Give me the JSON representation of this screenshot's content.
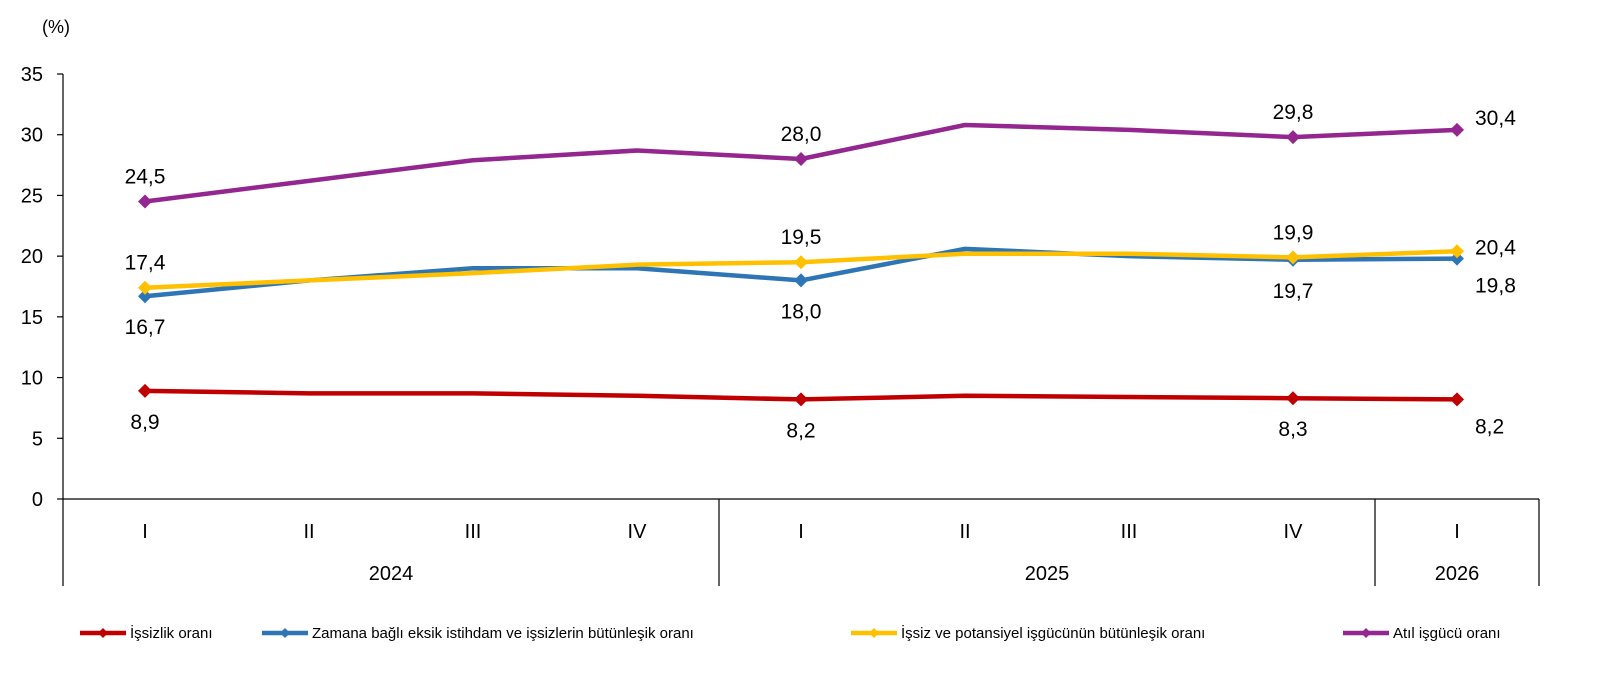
{
  "chart_data": {
    "type": "line",
    "y_unit": "(%)",
    "ylim": [
      0,
      35
    ],
    "y_ticks": [
      0,
      5,
      10,
      15,
      20,
      25,
      30,
      35
    ],
    "categories": [
      "I",
      "II",
      "III",
      "IV",
      "I",
      "II",
      "III",
      "IV",
      "I"
    ],
    "year_groups": [
      {
        "label": "2024",
        "start": 0,
        "end": 3
      },
      {
        "label": "2025",
        "start": 4,
        "end": 7
      },
      {
        "label": "2026",
        "start": 8,
        "end": 8
      }
    ],
    "series": [
      {
        "name": "İşsizlik oranı",
        "color": "#C00000",
        "values": [
          8.9,
          8.7,
          8.7,
          8.5,
          8.2,
          8.5,
          8.4,
          8.3,
          8.2
        ],
        "labels": [
          {
            "index": 0,
            "text": "8,9",
            "pos": "below"
          },
          {
            "index": 4,
            "text": "8,2",
            "pos": "below"
          },
          {
            "index": 7,
            "text": "8,3",
            "pos": "below"
          },
          {
            "index": 8,
            "text": "8,2",
            "pos": "below-right"
          }
        ]
      },
      {
        "name": "Zamana bağlı eksik istihdam ve işsizlerin bütünleşik oranı",
        "color": "#2E75B6",
        "values": [
          16.7,
          18.0,
          19.0,
          19.0,
          18.0,
          20.6,
          20.0,
          19.7,
          19.8
        ],
        "labels": [
          {
            "index": 0,
            "text": "16,7",
            "pos": "below"
          },
          {
            "index": 4,
            "text": "18,0",
            "pos": "below"
          },
          {
            "index": 7,
            "text": "19,7",
            "pos": "below"
          },
          {
            "index": 8,
            "text": "19,8",
            "pos": "below-right"
          }
        ]
      },
      {
        "name": "İşsiz ve potansiyel işgücünün bütünleşik oranı",
        "color": "#FFC000",
        "values": [
          17.4,
          18.0,
          18.6,
          19.3,
          19.5,
          20.2,
          20.2,
          19.9,
          20.4
        ],
        "labels": [
          {
            "index": 0,
            "text": "17,4",
            "pos": "above"
          },
          {
            "index": 4,
            "text": "19,5",
            "pos": "above"
          },
          {
            "index": 7,
            "text": "19,9",
            "pos": "above"
          },
          {
            "index": 8,
            "text": "20,4",
            "pos": "right"
          }
        ]
      },
      {
        "name": "Atıl işgücü oranı",
        "color": "#93278F",
        "values": [
          24.5,
          26.2,
          27.9,
          28.7,
          28.0,
          30.8,
          30.4,
          29.8,
          30.4
        ],
        "labels": [
          {
            "index": 0,
            "text": "24,5",
            "pos": "above"
          },
          {
            "index": 4,
            "text": "28,0",
            "pos": "above"
          },
          {
            "index": 7,
            "text": "29,8",
            "pos": "above"
          },
          {
            "index": 8,
            "text": "30,4",
            "pos": "above-right"
          }
        ]
      }
    ],
    "legend_position": "bottom"
  }
}
